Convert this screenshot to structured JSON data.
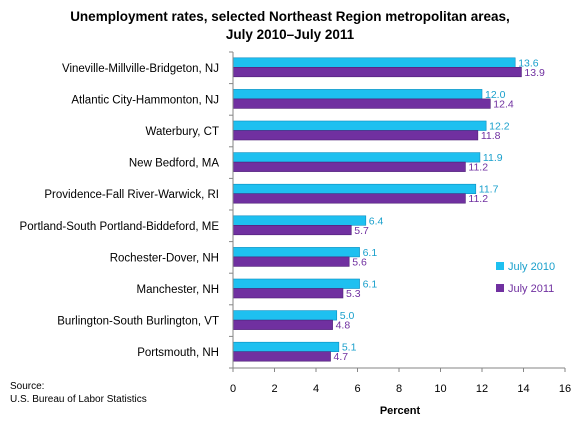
{
  "chart_data": {
    "type": "bar",
    "orientation": "horizontal",
    "title_line1": "Unemployment rates, selected Northeast Region metropolitan areas,",
    "title_line2": "July 2010–July 2011",
    "xlabel": "Percent",
    "ylabel": "",
    "xlim": [
      0,
      16
    ],
    "xticks": [
      "0",
      "2",
      "4",
      "6",
      "8",
      "10",
      "12",
      "14",
      "16"
    ],
    "categories": [
      "Vineville-Millville-Bridgeton, NJ",
      "Atlantic City-Hammonton,  NJ",
      "Waterbury, CT",
      "New Bedford, MA",
      "Providence-Fall River-Warwick, RI",
      "Portland-South Portland-Biddeford, ME",
      "Rochester-Dover, NH",
      "Manchester, NH",
      "Burlington-South  Burlington, VT",
      "Portsmouth,  NH"
    ],
    "series": [
      {
        "name": "July 2010",
        "color": "#1ec0f0",
        "values": [
          13.6,
          12.0,
          12.2,
          11.9,
          11.7,
          6.4,
          6.1,
          6.1,
          5.0,
          5.1
        ],
        "labels": [
          "13.6",
          "12.0",
          "12.2",
          "11.9",
          "11.7",
          "6.4",
          "6.1",
          "6.1",
          "5.0",
          "5.1"
        ]
      },
      {
        "name": "July 2011",
        "color": "#7030a0",
        "values": [
          13.9,
          12.4,
          11.8,
          11.2,
          11.2,
          5.7,
          5.6,
          5.3,
          4.8,
          4.7
        ],
        "labels": [
          "13.9",
          "12.4",
          "11.8",
          "11.2",
          "11.2",
          "5.7",
          "5.6",
          "5.3",
          "4.8",
          "4.7"
        ]
      }
    ],
    "label_colors": {
      "July 2010": "#1aa0cc",
      "July 2011": "#7030a0"
    },
    "legend_position": "right",
    "grid": false
  },
  "source": {
    "line1": "Source:",
    "line2": "U.S. Bureau of Labor Statistics"
  }
}
